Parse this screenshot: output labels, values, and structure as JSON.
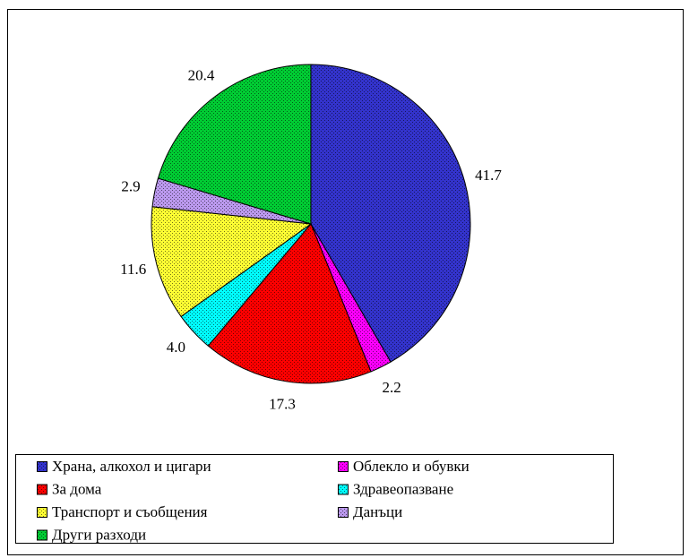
{
  "chart_data": {
    "type": "pie",
    "categories": [
      "Храна, алкохол и цигари",
      "Облекло и обувки",
      "За дома",
      "Здравеопазване",
      "Транспорт и съобщения",
      "Данъци",
      "Други разходи"
    ],
    "values": [
      41.7,
      2.2,
      17.3,
      4.0,
      11.6,
      2.9,
      20.4
    ],
    "value_labels": [
      "41.7",
      "2.2",
      "17.3",
      "4.0",
      "11.6",
      "2.9",
      "20.4"
    ],
    "colors": [
      "#3333cc",
      "#ff00ff",
      "#ff0000",
      "#00ffff",
      "#ffff33",
      "#bb99ee",
      "#00cc33"
    ],
    "legend": "bottom"
  }
}
